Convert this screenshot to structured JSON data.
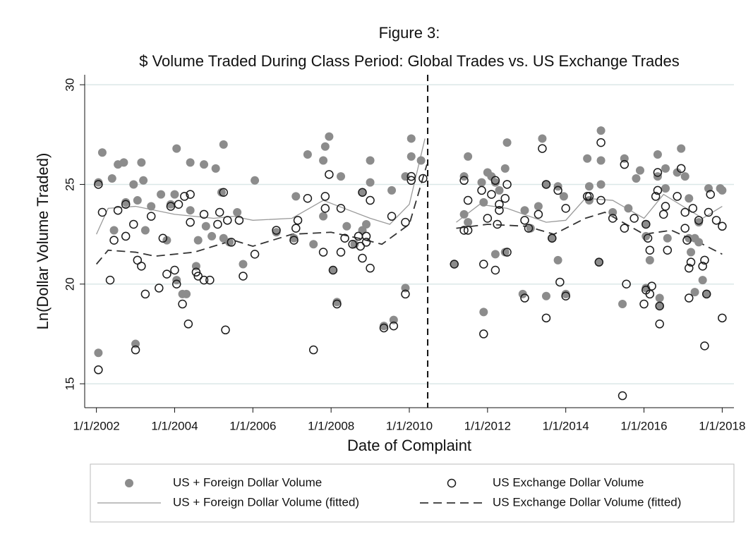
{
  "chart_data": {
    "type": "scatter",
    "title": "Figure 3:",
    "subtitle": "$ Volume Traded During Class Period: Global Trades vs. US Exchange Trades",
    "x_label": "Date of Complaint",
    "y_label": "Ln(Dollar Volume Traded)",
    "xlim": [
      2001.7,
      2018.3
    ],
    "ylim": [
      13.8,
      30.5
    ],
    "xticks": [
      {
        "value": 2002,
        "label": "1/1/2002"
      },
      {
        "value": 2004,
        "label": "1/1/2004"
      },
      {
        "value": 2006,
        "label": "1/1/2006"
      },
      {
        "value": 2008,
        "label": "1/1/2008"
      },
      {
        "value": 2010,
        "label": "1/1/2010"
      },
      {
        "value": 2012,
        "label": "1/1/2012"
      },
      {
        "value": 2014,
        "label": "1/1/2014"
      },
      {
        "value": 2016,
        "label": "1/1/2016"
      },
      {
        "value": 2018,
        "label": "1/1/2018"
      }
    ],
    "yticks": [
      15,
      20,
      25,
      30
    ],
    "grid": true,
    "legend": "bottom",
    "reference_line_x": 2010.47,
    "series": [
      {
        "name": "US + Foreign Dollar Volume",
        "color": "#8c8c8c",
        "marker": "filled",
        "x": [
          2002.05,
          2002.05,
          2002.15,
          2002.4,
          2002.45,
          2002.55,
          2002.7,
          2002.75,
          2002.95,
          2003.0,
          2003.05,
          2003.15,
          2003.2,
          2003.25,
          2003.4,
          2003.65,
          2003.8,
          2003.9,
          2004.0,
          2004.05,
          2004.05,
          2004.2,
          2004.3,
          2004.4,
          2004.4,
          2004.55,
          2004.6,
          2004.75,
          2004.8,
          2004.95,
          2005.05,
          2005.2,
          2005.25,
          2005.25,
          2005.4,
          2005.6,
          2005.75,
          2006.05,
          2006.6,
          2007.05,
          2007.1,
          2007.4,
          2007.55,
          2007.8,
          2007.8,
          2007.85,
          2007.95,
          2008.05,
          2008.15,
          2008.25,
          2008.4,
          2008.6,
          2008.8,
          2008.8,
          2008.9,
          2009.0,
          2009.0,
          2009.35,
          2009.6,
          2009.55,
          2009.9,
          2009.9,
          2010.05,
          2010.05,
          2010.3,
          2011.15,
          2011.4,
          2011.5,
          2011.4,
          2011.5,
          2011.85,
          2011.9,
          2011.9,
          2012.0,
          2012.1,
          2012.2,
          2012.2,
          2012.3,
          2012.45,
          2012.45,
          2012.5,
          2012.95,
          2012.9,
          2013.1,
          2013.3,
          2013.4,
          2013.5,
          2013.5,
          2013.65,
          2013.8,
          2013.8,
          2013.95,
          2014.0,
          2014.55,
          2014.6,
          2014.6,
          2014.85,
          2014.9,
          2014.9,
          2014.9,
          2015.2,
          2015.45,
          2015.5,
          2015.6,
          2015.8,
          2015.9,
          2016.05,
          2016.05,
          2016.05,
          2016.15,
          2016.35,
          2016.35,
          2016.4,
          2016.4,
          2016.55,
          2016.55,
          2016.6,
          2016.85,
          2016.95,
          2017.05,
          2017.15,
          2017.15,
          2017.2,
          2017.3,
          2017.3,
          2017.4,
          2017.4,
          2017.5,
          2017.6,
          2017.65,
          2017.95,
          2018.0
        ],
        "values": [
          16.55,
          25.1,
          26.6,
          25.3,
          22.7,
          26.0,
          26.1,
          24.1,
          25.0,
          17.0,
          24.2,
          26.1,
          25.2,
          22.7,
          23.9,
          24.5,
          22.2,
          24.0,
          24.5,
          26.8,
          20.2,
          19.5,
          19.5,
          26.1,
          23.7,
          20.9,
          22.2,
          26.0,
          22.9,
          22.4,
          25.8,
          24.6,
          27.0,
          22.3,
          22.1,
          23.6,
          21.0,
          25.2,
          22.6,
          22.3,
          24.4,
          26.5,
          22.0,
          23.4,
          26.2,
          26.9,
          27.4,
          20.7,
          19.1,
          25.4,
          22.9,
          22.0,
          24.6,
          22.7,
          23.0,
          25.1,
          26.2,
          17.9,
          18.2,
          24.7,
          19.8,
          25.4,
          26.4,
          27.3,
          26.2,
          21.0,
          25.4,
          26.4,
          23.5,
          23.1,
          25.1,
          24.1,
          18.6,
          25.6,
          25.4,
          21.5,
          25.1,
          24.7,
          25.8,
          21.6,
          27.1,
          23.7,
          19.5,
          22.8,
          23.9,
          27.3,
          25.0,
          19.4,
          22.3,
          24.9,
          21.2,
          24.4,
          19.5,
          26.3,
          24.9,
          24.2,
          21.1,
          27.7,
          26.2,
          25.0,
          23.6,
          19.0,
          26.3,
          23.8,
          25.3,
          25.7,
          23.0,
          22.4,
          19.8,
          21.2,
          25.4,
          26.5,
          19.3,
          18.9,
          24.8,
          25.8,
          22.3,
          25.6,
          26.8,
          25.4,
          24.3,
          22.3,
          21.6,
          19.6,
          22.3,
          23.1,
          22.1,
          20.2,
          19.5,
          24.8,
          24.8,
          24.7
        ]
      },
      {
        "name": "US Exchange Dollar Volume",
        "color": "#1a1a1a",
        "marker": "hollow",
        "x": [
          2002.05,
          2002.05,
          2002.15,
          2002.35,
          2002.45,
          2002.55,
          2002.75,
          2002.75,
          2002.95,
          2003.0,
          2003.05,
          2003.15,
          2003.25,
          2003.4,
          2003.6,
          2003.7,
          2003.8,
          2003.9,
          2004.0,
          2004.05,
          2004.1,
          2004.2,
          2004.25,
          2004.4,
          2004.35,
          2004.4,
          2004.55,
          2004.6,
          2004.75,
          2004.75,
          2004.9,
          2005.1,
          2005.15,
          2005.3,
          2005.25,
          2005.35,
          2005.45,
          2005.65,
          2005.75,
          2006.05,
          2006.6,
          2007.05,
          2007.1,
          2007.15,
          2007.4,
          2007.55,
          2007.8,
          2007.85,
          2007.85,
          2007.95,
          2008.05,
          2008.15,
          2008.25,
          2008.25,
          2008.35,
          2008.55,
          2008.7,
          2008.75,
          2008.8,
          2008.8,
          2008.9,
          2008.9,
          2009.0,
          2009.0,
          2009.35,
          2009.6,
          2009.55,
          2009.9,
          2009.9,
          2010.05,
          2010.05,
          2010.35,
          2011.15,
          2011.4,
          2011.4,
          2011.5,
          2011.5,
          2011.85,
          2011.9,
          2011.9,
          2012.0,
          2012.1,
          2012.2,
          2012.2,
          2012.25,
          2012.3,
          2012.3,
          2012.45,
          2012.5,
          2012.5,
          2012.95,
          2012.95,
          2013.05,
          2013.3,
          2013.4,
          2013.5,
          2013.5,
          2013.65,
          2013.8,
          2013.85,
          2014.0,
          2014.0,
          2014.55,
          2014.6,
          2014.85,
          2014.9,
          2014.9,
          2015.2,
          2015.5,
          2015.5,
          2015.55,
          2015.45,
          2015.75,
          2016.0,
          2016.05,
          2016.05,
          2016.1,
          2016.15,
          2016.15,
          2016.2,
          2016.3,
          2016.35,
          2016.35,
          2016.4,
          2016.4,
          2016.5,
          2016.55,
          2016.6,
          2016.85,
          2016.95,
          2017.05,
          2017.05,
          2017.1,
          2017.15,
          2017.15,
          2017.2,
          2017.25,
          2017.4,
          2017.5,
          2017.55,
          2017.55,
          2017.6,
          2017.65,
          2017.7,
          2017.85,
          2018.0,
          2018.0
        ],
        "values": [
          15.7,
          25.0,
          23.6,
          20.2,
          22.2,
          23.7,
          24.0,
          22.4,
          23.0,
          16.7,
          21.2,
          20.9,
          19.5,
          23.4,
          19.8,
          22.3,
          20.5,
          23.9,
          20.7,
          20.0,
          24.0,
          19.0,
          24.4,
          24.5,
          18.0,
          23.1,
          20.6,
          20.4,
          20.2,
          23.5,
          20.2,
          23.0,
          23.6,
          17.7,
          24.6,
          23.2,
          22.1,
          23.2,
          20.4,
          21.5,
          22.7,
          22.2,
          22.8,
          23.2,
          24.3,
          16.7,
          21.6,
          23.8,
          24.4,
          25.5,
          20.7,
          19.0,
          23.8,
          21.6,
          22.3,
          22.0,
          22.4,
          21.9,
          24.6,
          21.3,
          22.4,
          22.1,
          20.8,
          24.2,
          17.8,
          17.9,
          23.4,
          23.1,
          19.5,
          25.2,
          25.4,
          25.3,
          21.0,
          22.7,
          25.2,
          24.2,
          22.7,
          24.7,
          21.0,
          17.5,
          23.3,
          24.5,
          20.7,
          25.2,
          23.0,
          24.0,
          23.7,
          24.3,
          21.6,
          25.0,
          23.2,
          19.3,
          22.8,
          23.5,
          26.8,
          18.3,
          25.0,
          22.3,
          24.7,
          20.1,
          23.8,
          19.4,
          24.4,
          24.4,
          21.1,
          27.1,
          24.2,
          23.3,
          26.0,
          22.8,
          20.0,
          14.4,
          23.3,
          19.0,
          23.0,
          19.7,
          22.3,
          21.7,
          19.5,
          19.9,
          24.4,
          24.7,
          25.6,
          18.0,
          18.9,
          23.5,
          23.9,
          21.7,
          24.4,
          25.8,
          23.6,
          22.8,
          22.2,
          20.8,
          19.3,
          21.1,
          23.8,
          23.2,
          20.9,
          21.2,
          16.9,
          19.5,
          23.6,
          24.5,
          23.2,
          22.9,
          18.3
        ]
      },
      {
        "name": "US + Foreign Dollar Volume (fitted)",
        "color": "#9a9a9a",
        "line": "solid",
        "x": [
          2002,
          2002.3,
          2003,
          2004,
          2005,
          2005.5,
          2006,
          2007,
          2007.8,
          2009,
          2009.5,
          2010,
          2010.4,
          null,
          2011.2,
          2011.8,
          2012.5,
          2013.5,
          2014,
          2014.5,
          2015.2,
          2016,
          2016.5,
          2017.5,
          2018
        ],
        "values": [
          22.5,
          23.8,
          23.9,
          23.5,
          23.3,
          23.4,
          23.2,
          23.3,
          24.2,
          23.3,
          23.0,
          24.0,
          27.3,
          null,
          23.1,
          24.0,
          23.8,
          23.1,
          23.2,
          24.3,
          24.2,
          23.3,
          24.5,
          23.3,
          23.9
        ]
      },
      {
        "name": "US Exchange Dollar Volume (fitted)",
        "color": "#333333",
        "line": "dash",
        "x": [
          2002,
          2002.3,
          2003,
          2003.5,
          2004.5,
          2005.5,
          2006,
          2007,
          2008,
          2008.7,
          2009.3,
          2010,
          2010.45,
          null,
          2011.2,
          2012,
          2013,
          2013.7,
          2014.5,
          2015,
          2016,
          2016.7,
          2017.5,
          2018
        ],
        "values": [
          21.0,
          21.7,
          21.6,
          21.4,
          21.6,
          22.2,
          21.9,
          22.5,
          22.6,
          22.3,
          22.0,
          23.0,
          26.0,
          null,
          22.8,
          23.0,
          22.9,
          22.5,
          23.3,
          23.6,
          22.5,
          22.7,
          22.0,
          21.5
        ]
      }
    ]
  }
}
